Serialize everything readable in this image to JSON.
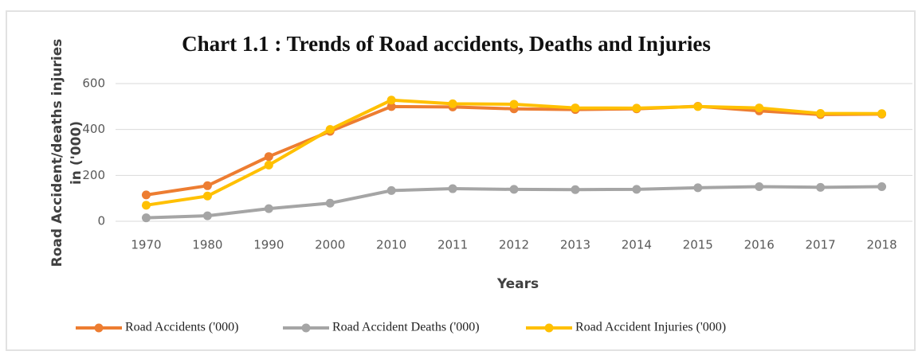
{
  "chart_data": {
    "type": "line",
    "title": "Chart 1.1 : Trends of Road accidents, Deaths and Injuries",
    "ylabel": [
      "Road Accident/deaths injuries",
      "in ('000)"
    ],
    "xlabel": "Years",
    "categories": [
      "1970",
      "1980",
      "1990",
      "2000",
      "2010",
      "2011",
      "2012",
      "2013",
      "2014",
      "2015",
      "2016",
      "2017",
      "2018"
    ],
    "series": [
      {
        "name": "Road Accidents ('000)",
        "color": "#ed7d31",
        "values": [
          115,
          155,
          282,
          392,
          500,
          498,
          490,
          487,
          490,
          501,
          481,
          465,
          467
        ]
      },
      {
        "name": "Road Accident Deaths ('000)",
        "color": "#a5a5a5",
        "values": [
          15,
          24,
          55,
          79,
          134,
          142,
          139,
          138,
          139,
          146,
          151,
          148,
          151
        ]
      },
      {
        "name": "Road Accident Injuries ('000)",
        "color": "#ffc000",
        "values": [
          70,
          110,
          245,
          400,
          528,
          512,
          510,
          494,
          493,
          500,
          494,
          470,
          469
        ]
      }
    ],
    "ylim": [
      0,
      600
    ],
    "yticks": [
      0,
      200,
      400,
      600
    ],
    "grid": true,
    "legend": "bottom"
  }
}
